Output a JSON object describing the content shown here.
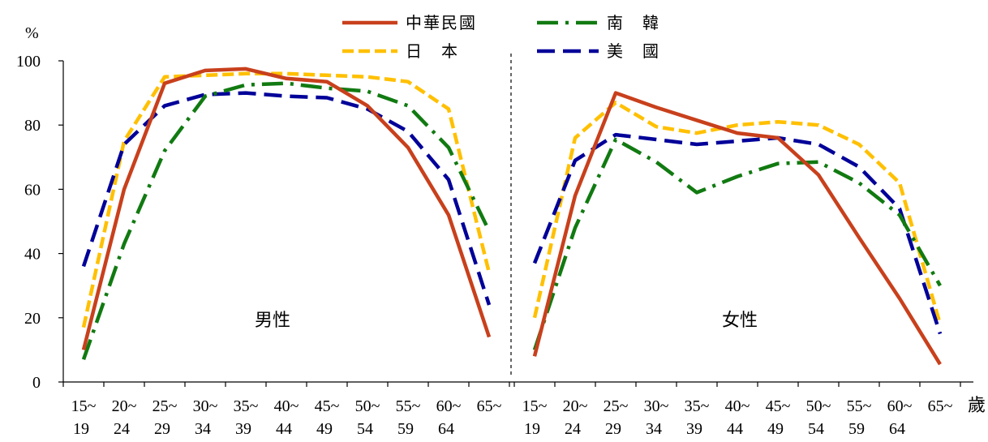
{
  "chart_data": {
    "type": "line",
    "ylabel": "%",
    "ylim": [
      0,
      100
    ],
    "yticks": [
      "0",
      "20",
      "40",
      "60",
      "80",
      "100"
    ],
    "xunit": "歲",
    "categories": [
      {
        "top": "15~",
        "bottom": "19"
      },
      {
        "top": "20~",
        "bottom": "24"
      },
      {
        "top": "25~",
        "bottom": "29"
      },
      {
        "top": "30~",
        "bottom": "34"
      },
      {
        "top": "35~",
        "bottom": "39"
      },
      {
        "top": "40~",
        "bottom": "44"
      },
      {
        "top": "45~",
        "bottom": "49"
      },
      {
        "top": "50~",
        "bottom": "54"
      },
      {
        "top": "55~",
        "bottom": "59"
      },
      {
        "top": "60~",
        "bottom": "64"
      },
      {
        "top": "65~",
        "bottom": ""
      }
    ],
    "panels": [
      {
        "label": "男性",
        "series": [
          {
            "key": "roc",
            "values": [
              10,
              60,
              93,
              97,
              97.5,
              94.5,
              93.5,
              86,
              73,
              52,
              14
            ]
          },
          {
            "key": "korea",
            "values": [
              7,
              43,
              72,
              89,
              92.5,
              93,
              91.5,
              90.5,
              86,
              73,
              47
            ]
          },
          {
            "key": "japan",
            "values": [
              17,
              75,
              95,
              95.5,
              96,
              96,
              95.5,
              95,
              93.5,
              85,
              34
            ]
          },
          {
            "key": "usa",
            "values": [
              36,
              74,
              86,
              89.5,
              90,
              89,
              88.5,
              85,
              78,
              63,
              24
            ]
          }
        ]
      },
      {
        "label": "女性",
        "series": [
          {
            "key": "roc",
            "values": [
              8,
              58,
              90,
              85.5,
              81.5,
              77.5,
              76,
              64.5,
              45,
              26,
              5.5
            ]
          },
          {
            "key": "korea",
            "values": [
              10,
              48,
              75.5,
              68.5,
              59,
              64,
              68,
              68.5,
              62,
              52,
              30
            ]
          },
          {
            "key": "japan",
            "values": [
              20,
              76,
              87,
              79.5,
              77.5,
              80,
              81,
              80,
              74,
              62,
              18
            ]
          },
          {
            "key": "usa",
            "values": [
              37,
              69,
              77,
              75.5,
              74,
              75,
              76,
              74,
              67,
              54,
              15
            ]
          }
        ]
      }
    ],
    "legend": {
      "position": "top-center",
      "entries": [
        {
          "key": "roc",
          "label": "中華民國",
          "color": "#C8401C",
          "style": "solid"
        },
        {
          "key": "korea",
          "label": "南　韓",
          "color": "#117A11",
          "style": "dash-dot"
        },
        {
          "key": "japan",
          "label": "日　本",
          "color": "#FFC000",
          "style": "short-dash"
        },
        {
          "key": "usa",
          "label": "美　國",
          "color": "#000099",
          "style": "long-dash"
        }
      ]
    }
  }
}
